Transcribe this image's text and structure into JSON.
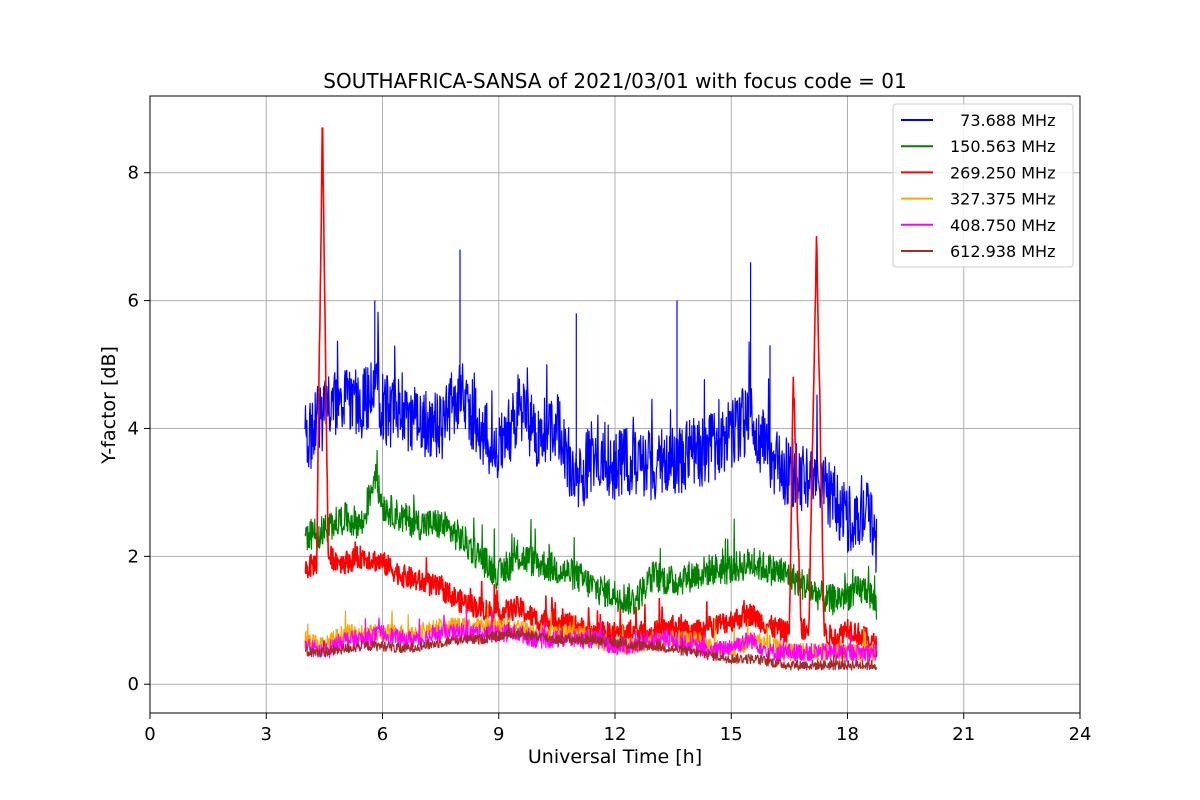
{
  "chart_data": {
    "type": "line",
    "title": "SOUTHAFRICA-SANSA of 2021/03/01 with focus code = 01",
    "xlabel": "Universal Time [h]",
    "ylabel": "Y-factor [dB]",
    "xlim": [
      0,
      24
    ],
    "ylim": [
      -0.45,
      9.2
    ],
    "xticks": [
      0,
      3,
      6,
      9,
      12,
      15,
      18,
      21,
      24
    ],
    "yticks": [
      0,
      2,
      4,
      6,
      8
    ],
    "grid": true,
    "legend_position": "top-right",
    "series": [
      {
        "name": "  73.688 MHz",
        "color": "#0000ff",
        "x": [
          4.0,
          4.3,
          4.6,
          5.0,
          5.5,
          5.8,
          6.0,
          6.5,
          7.0,
          7.5,
          8.0,
          8.5,
          9.0,
          9.5,
          10.0,
          10.5,
          11.0,
          11.5,
          12.0,
          12.5,
          13.0,
          13.5,
          14.0,
          14.5,
          15.0,
          15.5,
          16.0,
          16.5,
          17.0,
          17.5,
          18.0,
          18.5,
          18.75
        ],
        "y": [
          3.7,
          4.1,
          4.3,
          4.4,
          4.4,
          4.6,
          4.3,
          4.2,
          4.1,
          4.0,
          4.6,
          4.0,
          3.6,
          4.3,
          3.9,
          4.1,
          3.1,
          3.7,
          3.4,
          3.5,
          3.4,
          3.5,
          3.6,
          3.7,
          3.9,
          4.2,
          3.5,
          3.3,
          3.2,
          3.0,
          2.6,
          2.8,
          2.2
        ],
        "peak_x": [
          5.8,
          8.0,
          11.0,
          13.6,
          15.5,
          15.5,
          16.0
        ],
        "peak_y": [
          6.0,
          6.8,
          5.8,
          6.0,
          6.1,
          6.6,
          5.3
        ]
      },
      {
        "name": "150.563 MHz",
        "color": "#008000",
        "x": [
          4.0,
          4.5,
          5.0,
          5.5,
          5.8,
          6.0,
          6.5,
          7.0,
          7.5,
          8.0,
          8.5,
          9.0,
          9.5,
          10.0,
          10.5,
          11.0,
          11.5,
          12.0,
          12.5,
          13.0,
          13.5,
          14.0,
          14.5,
          15.0,
          15.5,
          16.0,
          16.5,
          17.0,
          17.5,
          18.0,
          18.5,
          18.75
        ],
        "y": [
          2.3,
          2.4,
          2.6,
          2.5,
          3.3,
          2.8,
          2.6,
          2.5,
          2.5,
          2.3,
          2.0,
          1.7,
          2.0,
          1.9,
          1.8,
          1.7,
          1.5,
          1.4,
          1.3,
          1.7,
          1.6,
          1.7,
          1.8,
          1.8,
          1.9,
          1.8,
          1.7,
          1.5,
          1.3,
          1.4,
          1.5,
          1.2
        ]
      },
      {
        "name": "269.250 MHz",
        "color": "#ff0000",
        "x": [
          4.0,
          4.3,
          4.45,
          4.6,
          5.0,
          5.5,
          6.0,
          6.5,
          7.0,
          7.5,
          8.0,
          8.5,
          9.0,
          9.5,
          10.0,
          10.5,
          11.0,
          11.5,
          12.0,
          12.5,
          13.0,
          13.5,
          14.0,
          14.5,
          15.0,
          15.5,
          16.0,
          16.5,
          16.6,
          16.8,
          17.0,
          17.2,
          17.4,
          17.7,
          18.0,
          18.5,
          18.75
        ],
        "y": [
          1.8,
          1.9,
          8.7,
          2.0,
          1.9,
          2.0,
          1.9,
          1.7,
          1.6,
          1.5,
          1.3,
          1.2,
          1.1,
          1.2,
          1.0,
          1.0,
          0.9,
          0.8,
          0.8,
          0.8,
          0.8,
          0.9,
          0.8,
          0.9,
          1.0,
          1.1,
          0.9,
          0.8,
          4.8,
          0.9,
          0.8,
          7.0,
          0.8,
          0.7,
          0.9,
          0.7,
          0.6
        ]
      },
      {
        "name": "327.375 MHz",
        "color": "#ffa500",
        "x": [
          4.0,
          4.5,
          5.0,
          5.5,
          6.0,
          6.5,
          7.0,
          7.5,
          8.0,
          8.5,
          9.0,
          9.5,
          10.0,
          10.5,
          11.0,
          11.5,
          12.0,
          12.5,
          13.0,
          13.5,
          14.0,
          14.5,
          15.0,
          15.5,
          16.0,
          16.5,
          17.0,
          17.5,
          18.0,
          18.5,
          18.75
        ],
        "y": [
          0.7,
          0.6,
          0.8,
          0.8,
          0.8,
          0.8,
          0.8,
          0.9,
          0.9,
          0.9,
          0.9,
          0.9,
          0.8,
          0.8,
          0.8,
          0.7,
          0.6,
          0.6,
          0.7,
          0.7,
          0.7,
          0.6,
          0.5,
          0.7,
          0.6,
          0.5,
          0.5,
          0.5,
          0.5,
          0.5,
          0.5
        ]
      },
      {
        "name": "408.750 MHz",
        "color": "#ff00ff",
        "x": [
          4.0,
          4.5,
          5.0,
          5.5,
          6.0,
          6.5,
          7.0,
          7.5,
          8.0,
          8.5,
          9.0,
          9.5,
          10.0,
          10.5,
          11.0,
          11.5,
          12.0,
          12.5,
          13.0,
          13.5,
          14.0,
          14.5,
          15.0,
          15.5,
          16.0,
          16.5,
          17.0,
          17.5,
          18.0,
          18.5,
          18.75
        ],
        "y": [
          0.6,
          0.5,
          0.7,
          0.7,
          0.8,
          0.7,
          0.7,
          0.8,
          0.8,
          0.8,
          0.8,
          0.8,
          0.7,
          0.7,
          0.7,
          0.7,
          0.6,
          0.6,
          0.7,
          0.7,
          0.6,
          0.5,
          0.6,
          0.7,
          0.5,
          0.5,
          0.5,
          0.5,
          0.5,
          0.5,
          0.5
        ]
      },
      {
        "name": "612.938 MHz",
        "color": "#a52a2a",
        "x": [
          4.0,
          4.5,
          5.0,
          5.5,
          6.0,
          6.5,
          7.0,
          7.5,
          8.0,
          8.5,
          9.0,
          9.5,
          10.0,
          10.5,
          11.0,
          11.5,
          12.0,
          12.5,
          13.0,
          13.5,
          14.0,
          14.5,
          15.0,
          15.5,
          16.0,
          16.5,
          17.0,
          17.5,
          18.0,
          18.5,
          18.75
        ],
        "y": [
          0.5,
          0.5,
          0.55,
          0.6,
          0.6,
          0.55,
          0.6,
          0.65,
          0.7,
          0.7,
          0.75,
          0.8,
          0.75,
          0.7,
          0.7,
          0.7,
          0.65,
          0.6,
          0.6,
          0.55,
          0.5,
          0.45,
          0.4,
          0.4,
          0.35,
          0.3,
          0.3,
          0.3,
          0.3,
          0.3,
          0.3
        ]
      }
    ]
  }
}
